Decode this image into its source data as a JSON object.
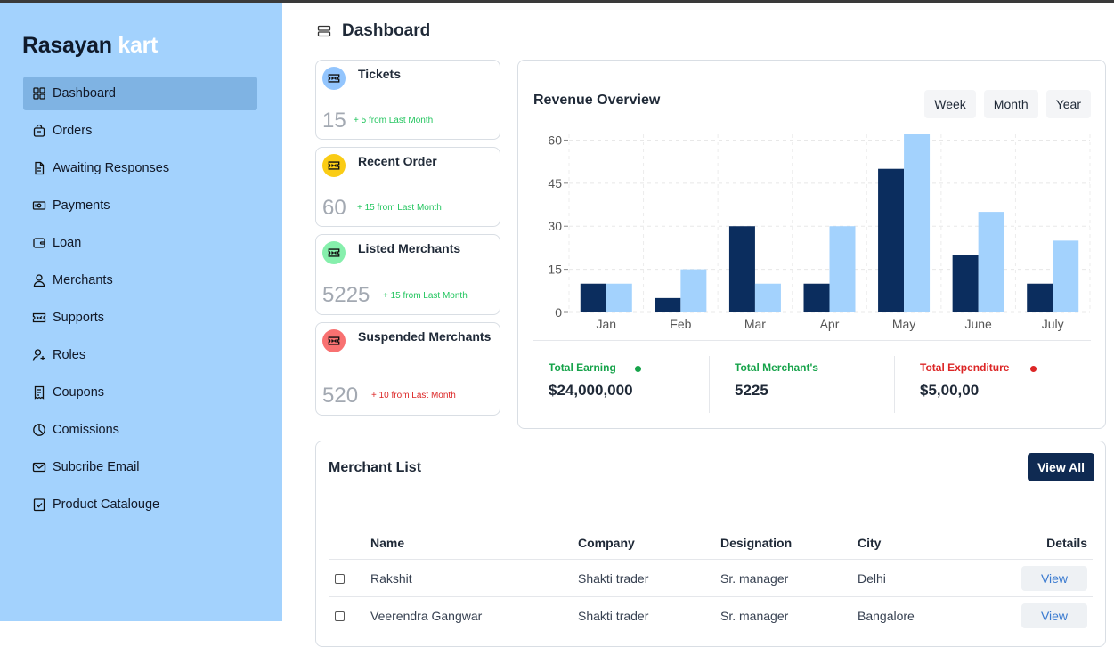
{
  "brand": {
    "part1": "Rasayan",
    "part2": "kart"
  },
  "nav": [
    {
      "label": "Dashboard",
      "icon": "grid-icon"
    },
    {
      "label": "Orders",
      "icon": "bag-icon"
    },
    {
      "label": "Awaiting Responses",
      "icon": "document-icon"
    },
    {
      "label": "Payments",
      "icon": "cash-icon"
    },
    {
      "label": "Loan",
      "icon": "wallet-icon"
    },
    {
      "label": "Merchants",
      "icon": "user-icon"
    },
    {
      "label": "Supports",
      "icon": "ticket-icon"
    },
    {
      "label": "Roles",
      "icon": "user-plus-icon"
    },
    {
      "label": "Coupons",
      "icon": "receipt-icon"
    },
    {
      "label": "Comissions",
      "icon": "pie-icon"
    },
    {
      "label": "Subcribe Email",
      "icon": "mail-icon"
    },
    {
      "label": "Product Catalouge",
      "icon": "clipboard-check-icon"
    }
  ],
  "header": {
    "title": "Dashboard",
    "icon": "layers-icon"
  },
  "stats": [
    {
      "title": "Tickets",
      "value": "15",
      "delta": "+ 5 from Last Month",
      "icon_bg": "#93c5fd",
      "delta_color": "#22c55e"
    },
    {
      "title": "Recent Order",
      "value": "60",
      "delta": "+ 15 from Last Month",
      "icon_bg": "#facc15",
      "delta_color": "#22c55e"
    },
    {
      "title": "Listed Merchants",
      "value": "5225",
      "delta": "+ 15 from Last Month",
      "icon_bg": "#86efac",
      "delta_color": "#22c55e"
    },
    {
      "title": "Suspended Merchants",
      "value": "520",
      "delta": "+ 10 from Last Month",
      "icon_bg": "#f87171",
      "delta_color": "#dc2626"
    }
  ],
  "revenue": {
    "title": "Revenue Overview",
    "periods": [
      "Week",
      "Month",
      "Year"
    ],
    "summary": [
      {
        "label": "Total Earning",
        "value": "$24,000,000",
        "color": "#16a34a",
        "dot": "#16a34a"
      },
      {
        "label": "Total Merchant's",
        "value": "5225",
        "color": "#16a34a"
      },
      {
        "label": "Total Expenditure",
        "value": "$5,00,00",
        "color": "#dc2626",
        "dot": "#dc2626"
      }
    ]
  },
  "chart_data": {
    "type": "bar",
    "categories": [
      "Jan",
      "Feb",
      "Mar",
      "Apr",
      "May",
      "June",
      "July"
    ],
    "series": [
      {
        "values": [
          10,
          5,
          30,
          10,
          50,
          20,
          10
        ],
        "color": "#0b2d5e"
      },
      {
        "values": [
          10,
          15,
          10,
          30,
          62,
          35,
          25
        ],
        "color": "#a3d2fd"
      }
    ],
    "yticks": [
      0,
      15,
      30,
      45,
      60
    ],
    "ylim": [
      0,
      62
    ],
    "grid": true
  },
  "merchant_list": {
    "title": "Merchant List",
    "view_all": "View All",
    "columns": [
      "Name",
      "Company",
      "Designation",
      "City",
      "Details"
    ],
    "rows": [
      {
        "name": "Rakshit",
        "company": "Shakti trader",
        "designation": "Sr. manager",
        "city": "Delhi",
        "action": "View"
      },
      {
        "name": "Veerendra Gangwar",
        "company": "Shakti trader",
        "designation": "Sr. manager",
        "city": "Bangalore",
        "action": "View"
      }
    ]
  }
}
